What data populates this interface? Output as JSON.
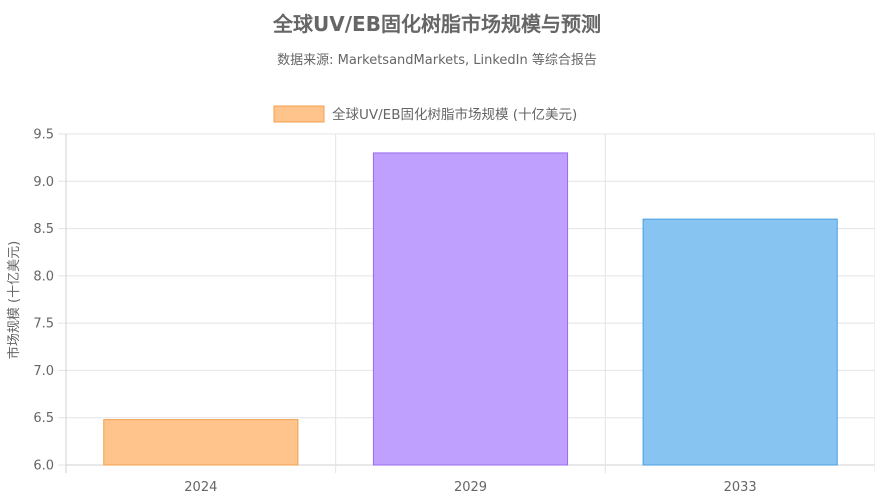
{
  "chart_data": {
    "type": "bar",
    "title": "全球UV/EB固化树脂市场规模与预测",
    "subtitle": "数据来源: MarketsandMarkets, LinkedIn 等综合报告",
    "categories": [
      "2024",
      "2029",
      "2033"
    ],
    "series": [
      {
        "name": "全球UV/EB固化树脂市场规模 (十亿美元)",
        "values": [
          6.48,
          9.3,
          8.6
        ]
      }
    ],
    "bar_colors": [
      "#ffc48c",
      "#c0a0ff",
      "#88c4f2"
    ],
    "bar_border_colors": [
      "#f0a050",
      "#9a6cf0",
      "#4a9fe0"
    ],
    "legend_swatch_color": "#ffc48c",
    "legend_swatch_border": "#f0a050",
    "xlabel": "",
    "ylabel": "市场规模 (十亿美元)",
    "ylim": [
      6.0,
      9.5
    ],
    "y_ticks": [
      "6.0",
      "6.5",
      "7.0",
      "7.5",
      "8.0",
      "8.5",
      "9.0",
      "9.5"
    ],
    "y_tick_values": [
      6.0,
      6.5,
      7.0,
      7.5,
      8.0,
      8.5,
      9.0,
      9.5
    ],
    "grid": true,
    "legend_position": "top"
  }
}
